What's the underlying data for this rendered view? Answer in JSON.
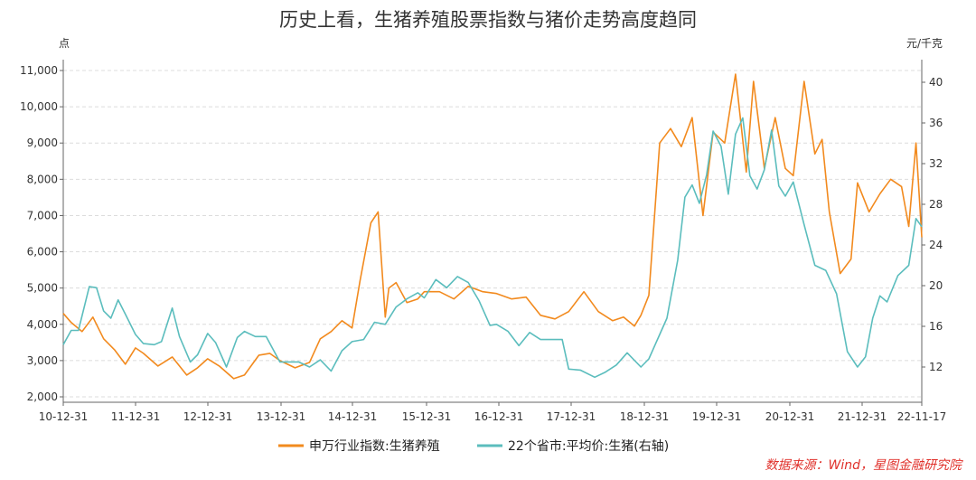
{
  "chart_data": {
    "type": "line",
    "title": "历史上看，生猪养殖股票指数与猪价走势高度趋同",
    "left_unit": "点",
    "right_unit": "元/千克",
    "source": "数据来源：Wind，星图金融研究院",
    "x_ticks": [
      "10-12-31",
      "11-12-31",
      "12-12-31",
      "13-12-31",
      "14-12-31",
      "15-12-31",
      "16-12-31",
      "17-12-31",
      "18-12-31",
      "19-12-31",
      "20-12-31",
      "21-12-31",
      "22-11-17"
    ],
    "y_left": {
      "min": 2000,
      "max": 11000,
      "ticks": [
        "2,000",
        "3,000",
        "4,000",
        "5,000",
        "6,000",
        "7,000",
        "8,000",
        "9,000",
        "10,000",
        "11,000"
      ]
    },
    "y_right": {
      "min": 8,
      "max": 42,
      "ticks": [
        "12",
        "16",
        "20",
        "24",
        "28",
        "32",
        "36",
        "40"
      ]
    },
    "grid": true,
    "legend_position": "bottom",
    "series": [
      {
        "name": "申万行业指数:生猪养殖",
        "axis": "left",
        "color": "#f28a1e",
        "x": [
          2010.99,
          2011.1,
          2011.25,
          2011.4,
          2011.55,
          2011.7,
          2011.85,
          2011.99,
          2012.1,
          2012.3,
          2012.5,
          2012.7,
          2012.85,
          2012.99,
          2013.15,
          2013.35,
          2013.5,
          2013.7,
          2013.85,
          2013.99,
          2014.2,
          2014.4,
          2014.55,
          2014.7,
          2014.85,
          2014.99,
          2015.1,
          2015.25,
          2015.35,
          2015.45,
          2015.5,
          2015.6,
          2015.75,
          2015.9,
          2015.99,
          2016.2,
          2016.4,
          2016.6,
          2016.8,
          2016.99,
          2017.2,
          2017.4,
          2017.6,
          2017.8,
          2017.99,
          2018.2,
          2018.4,
          2018.6,
          2018.75,
          2018.9,
          2018.99,
          2019.1,
          2019.25,
          2019.4,
          2019.55,
          2019.7,
          2019.85,
          2019.99,
          2020.15,
          2020.3,
          2020.45,
          2020.55,
          2020.7,
          2020.85,
          2020.99,
          2021.1,
          2021.25,
          2021.4,
          2021.5,
          2021.6,
          2021.75,
          2021.9,
          2021.99,
          2022.15,
          2022.3,
          2022.45,
          2022.6,
          2022.7,
          2022.8,
          2022.88
        ],
        "values": [
          4300,
          4050,
          3800,
          4200,
          3600,
          3300,
          2900,
          3350,
          3200,
          2850,
          3100,
          2600,
          2800,
          3050,
          2850,
          2500,
          2600,
          3150,
          3200,
          3000,
          2800,
          2950,
          3600,
          3800,
          4100,
          3900,
          5200,
          6800,
          7100,
          4200,
          5000,
          5150,
          4600,
          4700,
          4900,
          4900,
          4700,
          5050,
          4900,
          4850,
          4700,
          4750,
          4250,
          4150,
          4350,
          4900,
          4350,
          4100,
          4200,
          3950,
          4250,
          4800,
          9000,
          9400,
          8900,
          9700,
          7000,
          9300,
          9000,
          10900,
          8200,
          10700,
          8300,
          9700,
          8300,
          8100,
          10700,
          8700,
          9100,
          7100,
          5400,
          5800,
          7900,
          7100,
          7600,
          8000,
          7800,
          6700,
          9000,
          6400
        ]
      },
      {
        "name": "22个省市:平均价:生猪(右轴)",
        "axis": "right",
        "color": "#5bbdbd",
        "x": [
          2010.99,
          2011.1,
          2011.2,
          2011.35,
          2011.45,
          2011.55,
          2011.65,
          2011.75,
          2011.85,
          2011.99,
          2012.1,
          2012.25,
          2012.35,
          2012.5,
          2012.6,
          2012.75,
          2012.85,
          2012.99,
          2013.1,
          2013.25,
          2013.4,
          2013.5,
          2013.65,
          2013.8,
          2013.99,
          2014.1,
          2014.25,
          2014.4,
          2014.55,
          2014.7,
          2014.85,
          2014.99,
          2015.15,
          2015.3,
          2015.45,
          2015.6,
          2015.75,
          2015.9,
          2015.99,
          2016.15,
          2016.3,
          2016.45,
          2016.6,
          2016.75,
          2016.9,
          2016.99,
          2017.15,
          2017.3,
          2017.45,
          2017.6,
          2017.75,
          2017.9,
          2017.99,
          2018.15,
          2018.35,
          2018.5,
          2018.65,
          2018.8,
          2018.99,
          2019.1,
          2019.25,
          2019.35,
          2019.5,
          2019.6,
          2019.7,
          2019.8,
          2019.9,
          2019.99,
          2020.1,
          2020.2,
          2020.3,
          2020.4,
          2020.5,
          2020.6,
          2020.7,
          2020.8,
          2020.9,
          2020.99,
          2021.1,
          2021.25,
          2021.4,
          2021.55,
          2021.7,
          2021.85,
          2021.99,
          2022.1,
          2022.2,
          2022.3,
          2022.4,
          2022.55,
          2022.7,
          2022.8,
          2022.88
        ],
        "values": [
          14.2,
          15.6,
          15.6,
          19.9,
          19.8,
          17.5,
          16.8,
          18.6,
          17.2,
          15.2,
          14.3,
          14.2,
          14.5,
          17.8,
          15,
          12.5,
          13.2,
          15.3,
          14.4,
          12,
          14.9,
          15.5,
          15,
          15,
          12.5,
          12.5,
          12.5,
          12,
          12.7,
          11.6,
          13.6,
          14.5,
          14.7,
          16.4,
          16.2,
          17.9,
          18.7,
          19.3,
          18.8,
          20.6,
          19.8,
          20.9,
          20.3,
          18.5,
          16.1,
          16.2,
          15.5,
          14.1,
          15.4,
          14.7,
          14.7,
          14.7,
          11.8,
          11.7,
          11,
          11.5,
          12.2,
          13.4,
          12,
          12.8,
          15.2,
          16.8,
          22.5,
          28.7,
          29.9,
          28.1,
          30.9,
          35.2,
          33.7,
          29,
          34.9,
          36.5,
          30.8,
          29.5,
          31.4,
          35.3,
          29.8,
          28.8,
          30.2,
          26,
          22,
          21.5,
          19.2,
          13.5,
          12,
          13,
          16.8,
          19,
          18.4,
          21,
          22,
          26.6,
          25.8
        ]
      }
    ]
  }
}
